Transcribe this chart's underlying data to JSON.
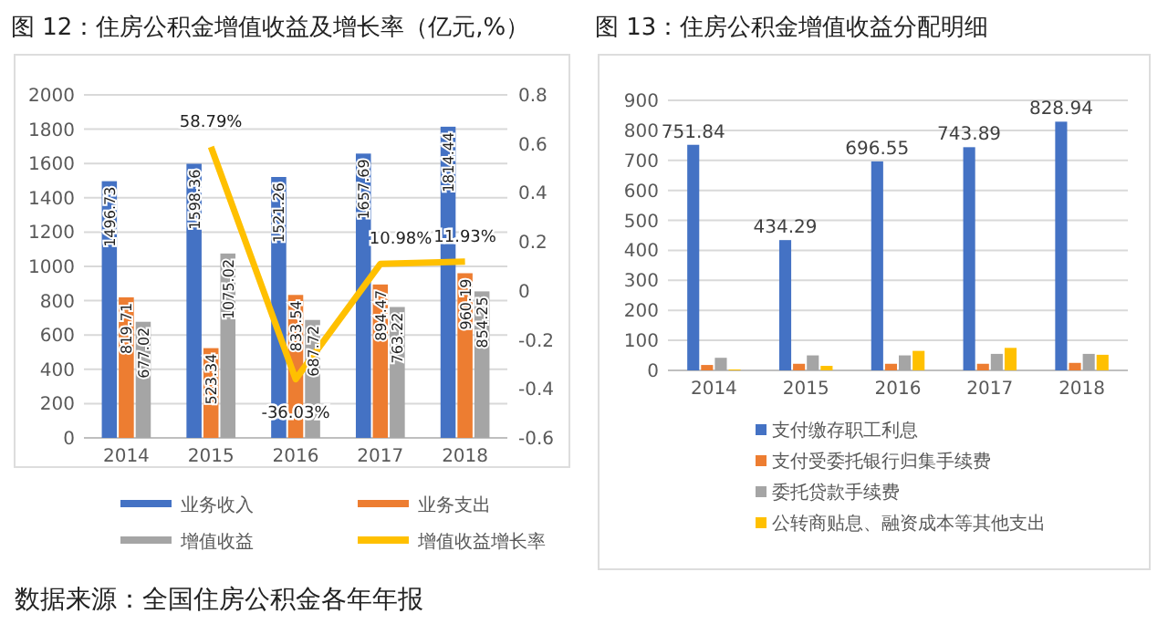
{
  "chart_data": [
    {
      "type": "bar",
      "title": "图 12：住房公积金增值收益及增长率（亿元,%）",
      "categories": [
        "2014",
        "2015",
        "2016",
        "2017",
        "2018"
      ],
      "series": [
        {
          "name": "业务收入",
          "color": "#4472c4",
          "values": [
            1496.73,
            1598.36,
            1521.26,
            1657.69,
            1814.44
          ]
        },
        {
          "name": "业务支出",
          "color": "#ed7d31",
          "values": [
            819.71,
            523.34,
            833.54,
            894.47,
            960.19
          ]
        },
        {
          "name": "增值收益",
          "color": "#a5a5a5",
          "values": [
            677.02,
            1075.02,
            687.72,
            763.22,
            854.25
          ]
        },
        {
          "name": "增值收益增长率",
          "type": "line",
          "axis": "y2",
          "color": "#ffc000",
          "values": [
            null,
            0.5879,
            -0.3603,
            0.1098,
            0.1193
          ],
          "value_labels": [
            null,
            "58.79%",
            "-36.03%",
            "10.98%",
            "11.93%"
          ]
        }
      ],
      "data_labels": true,
      "ylim": [
        0,
        2000
      ],
      "yticks": [
        0,
        200,
        400,
        600,
        800,
        1000,
        1200,
        1400,
        1600,
        1800,
        2000
      ],
      "y2lim": [
        -0.6,
        0.8
      ],
      "y2ticks": [
        -0.6,
        -0.4,
        -0.2,
        0,
        0.2,
        0.4,
        0.6,
        0.8
      ],
      "grid": "y",
      "legend": "bottom",
      "marker": "none",
      "annotations": [
        "数据来源：全国住房公积金各年年报"
      ]
    },
    {
      "type": "bar",
      "title": "图 13：住房公积金增值收益分配明细",
      "categories": [
        "2014",
        "2015",
        "2016",
        "2017",
        "2018"
      ],
      "series": [
        {
          "name": "支付缴存职工利息",
          "color": "#4472c4",
          "values": [
            751.84,
            434.29,
            696.55,
            743.89,
            828.94
          ],
          "value_labels": [
            "751.84",
            "434.29",
            "696.55",
            "743.89",
            "828.94"
          ]
        },
        {
          "name": "支付受委托银行归集手续费",
          "color": "#ed7d31",
          "values": [
            18,
            22,
            22,
            22,
            25
          ]
        },
        {
          "name": "委托贷款手续费",
          "color": "#a5a5a5",
          "values": [
            42,
            50,
            50,
            55,
            55
          ]
        },
        {
          "name": "公转商贴息、融资成本等其他支出",
          "color": "#ffc000",
          "values": [
            3,
            15,
            65,
            75,
            52
          ]
        }
      ],
      "ylim": [
        0,
        900
      ],
      "yticks": [
        0,
        100,
        200,
        300,
        400,
        500,
        600,
        700,
        800,
        900
      ],
      "grid": "y",
      "legend": "bottom"
    }
  ]
}
